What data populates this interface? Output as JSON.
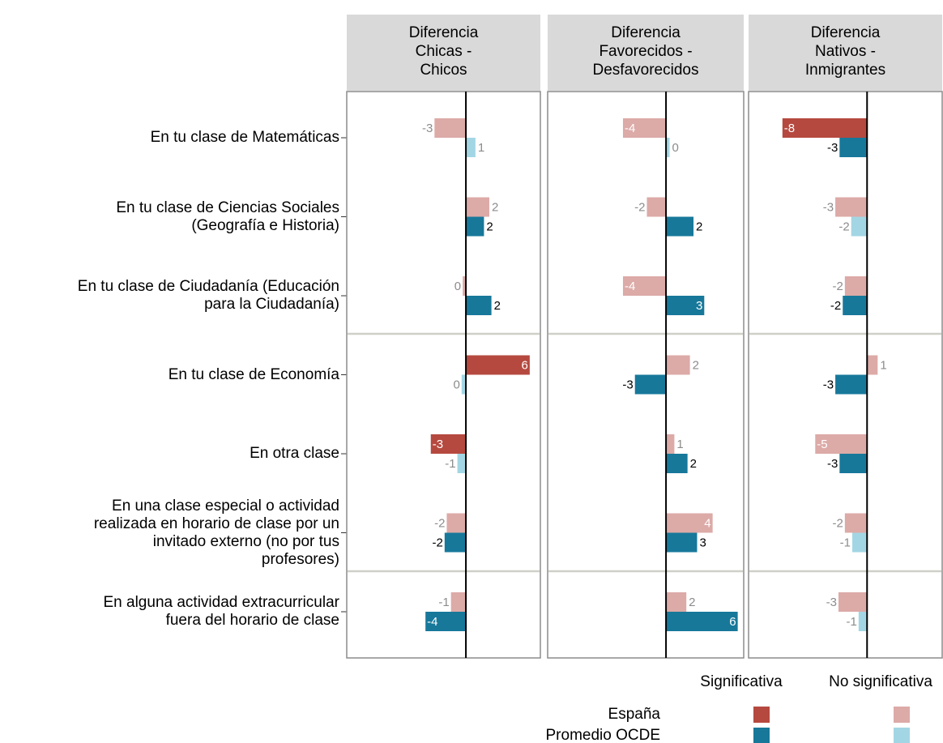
{
  "chart_data": {
    "type": "bar",
    "orientation": "horizontal",
    "categories": [
      "En tu clase de Matemáticas",
      "En tu clase de Ciencias Sociales\n(Geografía e Historia)",
      "En tu clase de Ciudadanía (Educación\npara la Ciudadanía)",
      "En tu clase de Economía",
      "En otra clase",
      "En una clase especial o actividad\nrealizada en horario de clase por un\ninvitado externo (no por tus\nprofesores)",
      "En alguna actividad extracurricular\nfuera del horario de clase"
    ],
    "series": [
      {
        "name": "España",
        "color": "#b5493f",
        "color_ns": "#dcaaa7"
      },
      {
        "name": "Promedio OCDE",
        "color": "#17789a",
        "color_ns": "#a3d6e4"
      }
    ],
    "facets": [
      {
        "title": "Diferencia\nChicas -\nChicos",
        "xlim": [
          -11.2,
          7.0
        ],
        "series": [
          {
            "values": [
              -2.95,
              2.2,
              -0.3,
              6.0,
              -3.3,
              -1.8,
              -1.4
            ],
            "value_labels": [
              "-3",
              "2",
              "0",
              "6",
              "-3",
              "-2",
              "-1"
            ],
            "significant": [
              false,
              false,
              false,
              true,
              true,
              false,
              false
            ]
          },
          {
            "values": [
              0.9,
              1.7,
              2.4,
              -0.4,
              -0.8,
              -2.0,
              -3.8
            ],
            "value_labels": [
              "1",
              "2",
              "2",
              "0",
              "-1",
              "-2",
              "-4"
            ],
            "significant": [
              false,
              true,
              true,
              false,
              false,
              true,
              true
            ]
          }
        ]
      },
      {
        "title": "Diferencia\nFavorecidos -\nDesfavorecidos",
        "xlim": [
          -9.9,
          6.5
        ],
        "series": [
          {
            "values": [
              -3.6,
              -1.6,
              -3.6,
              2.0,
              0.7,
              3.9,
              1.7
            ],
            "value_labels": [
              "-4",
              "-2",
              "-4",
              "2",
              "1",
              "4",
              "2"
            ],
            "significant": [
              false,
              false,
              false,
              false,
              false,
              false,
              false
            ]
          },
          {
            "values": [
              0.3,
              2.3,
              3.2,
              -2.6,
              1.8,
              2.6,
              6.0
            ],
            "value_labels": [
              "0",
              "2",
              "3",
              "-3",
              "2",
              "3",
              "6"
            ],
            "significant": [
              false,
              true,
              true,
              true,
              true,
              true,
              true
            ]
          }
        ]
      },
      {
        "title": "Diferencia\nNativos -\nInmigrantes",
        "xlim": [
          -11.2,
          7.1
        ],
        "series": [
          {
            "values": [
              -8.0,
              -3.0,
              -2.1,
              1.0,
              -4.9,
              -2.1,
              -2.7
            ],
            "value_labels": [
              "-8",
              "-3",
              "-2",
              "1",
              "-5",
              "-2",
              "-3"
            ],
            "significant": [
              true,
              false,
              false,
              false,
              false,
              false,
              false
            ]
          },
          {
            "values": [
              -2.6,
              -1.5,
              -2.3,
              -3.0,
              -2.6,
              -1.4,
              -0.8
            ],
            "value_labels": [
              "-3",
              "-2",
              "-2",
              "-3",
              "-3",
              "-1",
              "-1"
            ],
            "significant": [
              true,
              false,
              true,
              true,
              true,
              false,
              false
            ]
          }
        ]
      }
    ],
    "legend": {
      "significant": "Significativa",
      "nonsignificant": "No significativa"
    }
  }
}
